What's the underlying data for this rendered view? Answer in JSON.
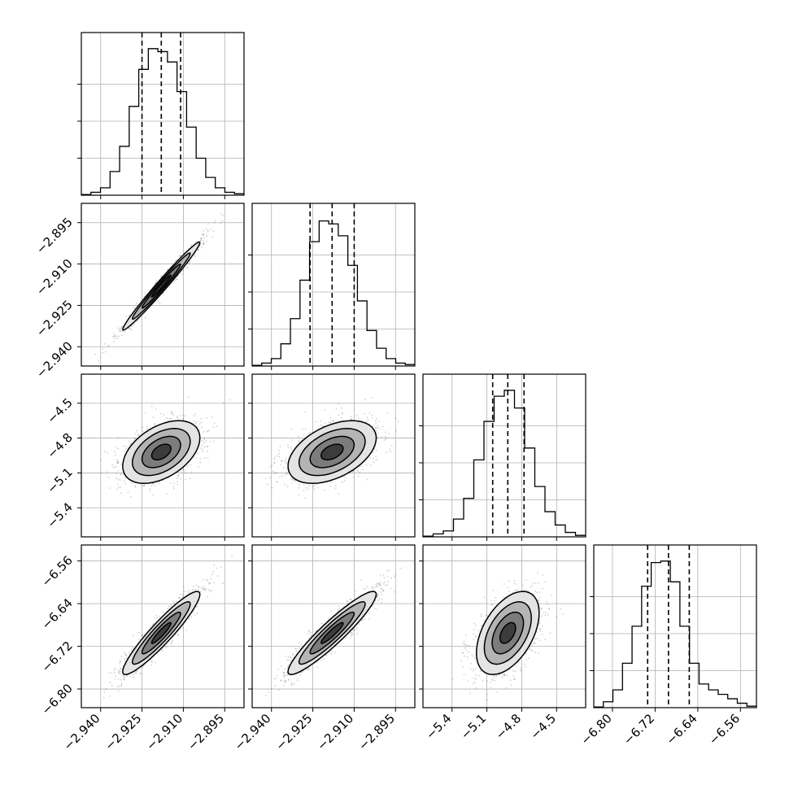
{
  "chart_data": {
    "type": "corner",
    "n_params": 4,
    "params": [
      {
        "median": -2.918,
        "q16": -2.925,
        "q84": -2.911,
        "range": [
          -2.947,
          -2.888
        ]
      },
      {
        "median": -2.918,
        "q16": -2.926,
        "q84": -2.91,
        "range": [
          -2.947,
          -2.888
        ]
      },
      {
        "median": -4.92,
        "q16": -5.05,
        "q84": -4.78,
        "range": [
          -5.65,
          -4.25
        ]
      },
      {
        "median": -6.695,
        "q16": -6.734,
        "q84": -6.656,
        "range": [
          -6.835,
          -6.53
        ]
      }
    ],
    "x_ticks": [
      {
        "values": [
          -2.94,
          -2.925,
          -2.91,
          -2.895
        ],
        "labels": [
          "−2.940",
          "−2.925",
          "−2.910",
          "−2.895"
        ]
      },
      {
        "values": [
          -2.94,
          -2.925,
          -2.91,
          -2.895
        ],
        "labels": [
          "−2.940",
          "−2.925",
          "−2.910",
          "−2.895"
        ]
      },
      {
        "values": [
          -5.4,
          -5.1,
          -4.8,
          -4.5
        ],
        "labels": [
          "−5.4",
          "−5.1",
          "−4.8",
          "−4.5"
        ]
      },
      {
        "values": [
          -6.8,
          -6.72,
          -6.64,
          -6.56
        ],
        "labels": [
          "−6.80",
          "−6.72",
          "−6.64",
          "−6.56"
        ]
      }
    ],
    "y_ticks": [
      null,
      {
        "values": [
          -2.94,
          -2.925,
          -2.91,
          -2.895
        ],
        "labels": [
          "−2.940",
          "−2.925",
          "−2.910",
          "−2.895"
        ]
      },
      {
        "values": [
          -5.4,
          -5.1,
          -4.8,
          -4.5
        ],
        "labels": [
          "−5.4",
          "−5.1",
          "−4.8",
          "−4.5"
        ]
      },
      {
        "values": [
          -6.8,
          -6.72,
          -6.64,
          -6.56
        ],
        "labels": [
          "−6.80",
          "−6.72",
          "−6.64",
          "−6.56"
        ]
      }
    ],
    "histograms": [
      [
        0.005,
        0.02,
        0.05,
        0.16,
        0.33,
        0.6,
        0.85,
        0.99,
        0.97,
        0.9,
        0.7,
        0.46,
        0.25,
        0.12,
        0.05,
        0.02,
        0.01
      ],
      [
        0.005,
        0.02,
        0.05,
        0.15,
        0.32,
        0.58,
        0.84,
        0.98,
        0.96,
        0.88,
        0.68,
        0.44,
        0.24,
        0.12,
        0.05,
        0.02,
        0.01
      ],
      [
        0.005,
        0.02,
        0.04,
        0.12,
        0.26,
        0.52,
        0.78,
        0.95,
        0.99,
        0.87,
        0.6,
        0.34,
        0.17,
        0.08,
        0.03,
        0.01
      ],
      [
        0.005,
        0.04,
        0.12,
        0.3,
        0.55,
        0.82,
        0.98,
        0.99,
        0.85,
        0.55,
        0.3,
        0.16,
        0.12,
        0.09,
        0.06,
        0.03,
        0.01
      ]
    ],
    "correlations": [
      [
        null,
        null,
        null,
        null
      ],
      [
        0.985,
        null,
        null,
        null
      ],
      [
        0.45,
        0.45,
        null,
        null
      ],
      [
        0.93,
        0.93,
        0.48,
        null
      ]
    ],
    "contour_levels": [
      0.5,
      1.0,
      1.5,
      2.0
    ],
    "grid": true,
    "colors": {
      "line": "#000000",
      "grid": "#b0b0b0",
      "points": "#000000"
    }
  }
}
